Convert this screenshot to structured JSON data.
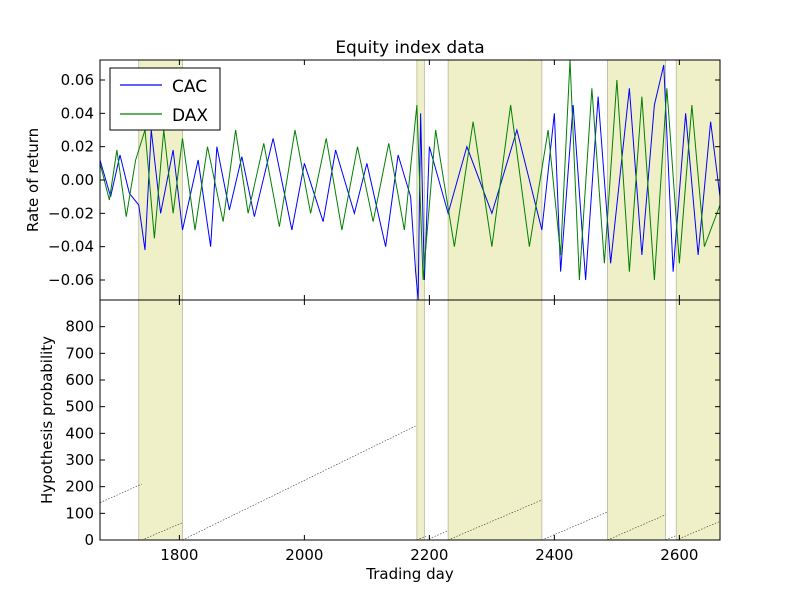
{
  "chart_data": [
    {
      "type": "line",
      "title": "Equity index data",
      "xlabel": "",
      "ylabel": "Rate of return",
      "xlim": [
        1673,
        2665
      ],
      "ylim": [
        -0.072,
        0.072
      ],
      "yticks": [
        -0.06,
        -0.04,
        -0.02,
        0.0,
        0.02,
        0.04,
        0.06
      ],
      "ytick_labels": [
        "−0.06",
        "−0.04",
        "−0.02",
        "0.00",
        "0.02",
        "0.04",
        "0.06"
      ],
      "grid": false,
      "legend": {
        "placement": "upper-left",
        "entries": [
          "CAC",
          "DAX"
        ]
      },
      "series": [
        {
          "name": "CAC",
          "color": "#0000ff",
          "x": [
            1673,
            1690,
            1705,
            1720,
            1735,
            1745,
            1755,
            1770,
            1790,
            1805,
            1830,
            1850,
            1860,
            1880,
            1900,
            1920,
            1950,
            1980,
            2000,
            2030,
            2050,
            2080,
            2100,
            2130,
            2150,
            2170,
            2178,
            2182,
            2186,
            2192,
            2200,
            2230,
            2260,
            2300,
            2340,
            2380,
            2400,
            2410,
            2430,
            2450,
            2470,
            2490,
            2520,
            2540,
            2560,
            2575,
            2590,
            2610,
            2630,
            2650,
            2665
          ],
          "y": [
            0.012,
            -0.01,
            0.015,
            -0.008,
            -0.015,
            -0.042,
            0.03,
            -0.02,
            0.018,
            -0.03,
            0.012,
            -0.04,
            0.02,
            -0.018,
            0.014,
            -0.022,
            0.025,
            -0.03,
            0.01,
            -0.025,
            0.018,
            -0.02,
            0.01,
            -0.04,
            0.015,
            -0.01,
            -0.055,
            -0.072,
            0.04,
            -0.06,
            0.02,
            -0.02,
            0.02,
            -0.02,
            0.03,
            -0.03,
            0.04,
            -0.055,
            0.045,
            -0.06,
            0.05,
            -0.05,
            0.055,
            -0.045,
            0.045,
            0.069,
            -0.055,
            0.04,
            -0.045,
            0.035,
            -0.01
          ]
        },
        {
          "name": "DAX",
          "color": "#008000",
          "x": [
            1673,
            1688,
            1700,
            1715,
            1730,
            1745,
            1760,
            1775,
            1790,
            1805,
            1825,
            1845,
            1870,
            1890,
            1910,
            1935,
            1960,
            1985,
            2010,
            2035,
            2060,
            2085,
            2110,
            2135,
            2160,
            2180,
            2190,
            2210,
            2240,
            2270,
            2300,
            2330,
            2360,
            2390,
            2410,
            2425,
            2440,
            2460,
            2480,
            2500,
            2520,
            2540,
            2560,
            2580,
            2600,
            2620,
            2640,
            2665
          ],
          "y": [
            0.01,
            -0.012,
            0.018,
            -0.022,
            0.012,
            0.03,
            -0.035,
            0.03,
            -0.02,
            0.025,
            -0.03,
            0.02,
            -0.025,
            0.03,
            -0.02,
            0.022,
            -0.028,
            0.03,
            -0.02,
            0.025,
            -0.03,
            0.02,
            -0.025,
            0.022,
            -0.03,
            0.045,
            -0.06,
            0.03,
            -0.04,
            0.035,
            -0.04,
            0.045,
            -0.04,
            0.03,
            -0.045,
            0.072,
            -0.06,
            0.055,
            -0.05,
            0.06,
            -0.055,
            0.05,
            -0.06,
            0.055,
            -0.05,
            0.045,
            -0.04,
            -0.015
          ]
        }
      ]
    },
    {
      "type": "scatter",
      "title": "",
      "xlabel": "Trading day",
      "ylabel": "Hypothesis probability",
      "xlim": [
        1673,
        2665
      ],
      "ylim": [
        0,
        900
      ],
      "xticks": [
        1800,
        2000,
        2200,
        2400,
        2600
      ],
      "xtick_labels": [
        "1800",
        "2000",
        "2200",
        "2400",
        "2600"
      ],
      "yticks": [
        0,
        100,
        200,
        300,
        400,
        500,
        600,
        700,
        800
      ],
      "ytick_labels": [
        "0",
        "100",
        "200",
        "300",
        "400",
        "500",
        "600",
        "700",
        "800"
      ],
      "grid": false,
      "diagonal_traces": [
        {
          "x0": 1673,
          "x1": 1740,
          "y0": 140,
          "y1": 210
        },
        {
          "x0": 1740,
          "x1": 1805,
          "y0": 0,
          "y1": 65
        },
        {
          "x0": 1805,
          "x1": 2180,
          "y0": 0,
          "y1": 430
        },
        {
          "x0": 2180,
          "x1": 2195,
          "y0": 0,
          "y1": 15
        },
        {
          "x0": 2195,
          "x1": 2230,
          "y0": 0,
          "y1": 35
        },
        {
          "x0": 2230,
          "x1": 2380,
          "y0": 0,
          "y1": 150
        },
        {
          "x0": 2380,
          "x1": 2485,
          "y0": 0,
          "y1": 105
        },
        {
          "x0": 2485,
          "x1": 2578,
          "y0": 0,
          "y1": 95
        },
        {
          "x0": 2578,
          "x1": 2595,
          "y0": 0,
          "y1": 17
        },
        {
          "x0": 2595,
          "x1": 2665,
          "y0": 0,
          "y1": 70
        }
      ]
    }
  ],
  "highlight_regions": {
    "color": "#f0f0c8",
    "spans": [
      [
        1735,
        1805
      ],
      [
        2180,
        2192
      ],
      [
        2230,
        2380
      ],
      [
        2485,
        2578
      ],
      [
        2595,
        2665
      ]
    ]
  }
}
